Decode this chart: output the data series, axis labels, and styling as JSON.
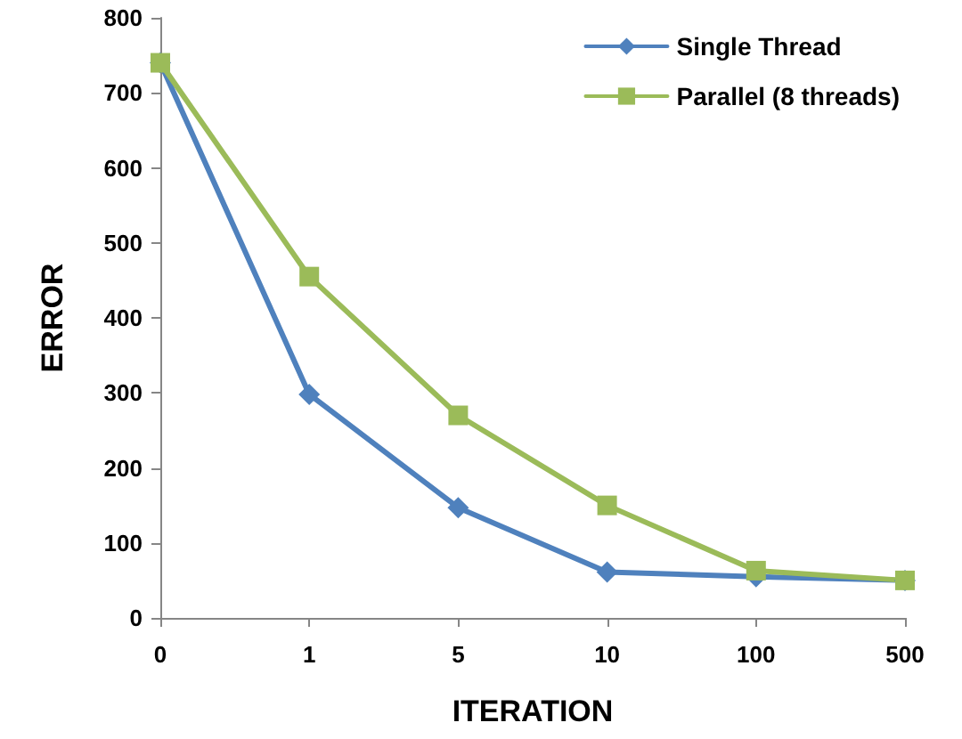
{
  "chart_data": {
    "type": "line",
    "xlabel": "ITERATION",
    "ylabel": "ERROR",
    "categories": [
      "0",
      "1",
      "5",
      "10",
      "100",
      "500"
    ],
    "series": [
      {
        "name": "Single Thread",
        "color": "#4f81bd",
        "marker": "diamond",
        "values": [
          740,
          298,
          147,
          61,
          55,
          50
        ]
      },
      {
        "name": "Parallel (8 threads)",
        "color": "#9bbb59",
        "marker": "square",
        "values": [
          740,
          455,
          270,
          150,
          63,
          50
        ]
      }
    ],
    "ylim": [
      0,
      800
    ],
    "yticks": [
      0,
      100,
      200,
      300,
      400,
      500,
      600,
      700,
      800
    ],
    "grid": false,
    "legend": "top right",
    "line_style": "solid"
  }
}
